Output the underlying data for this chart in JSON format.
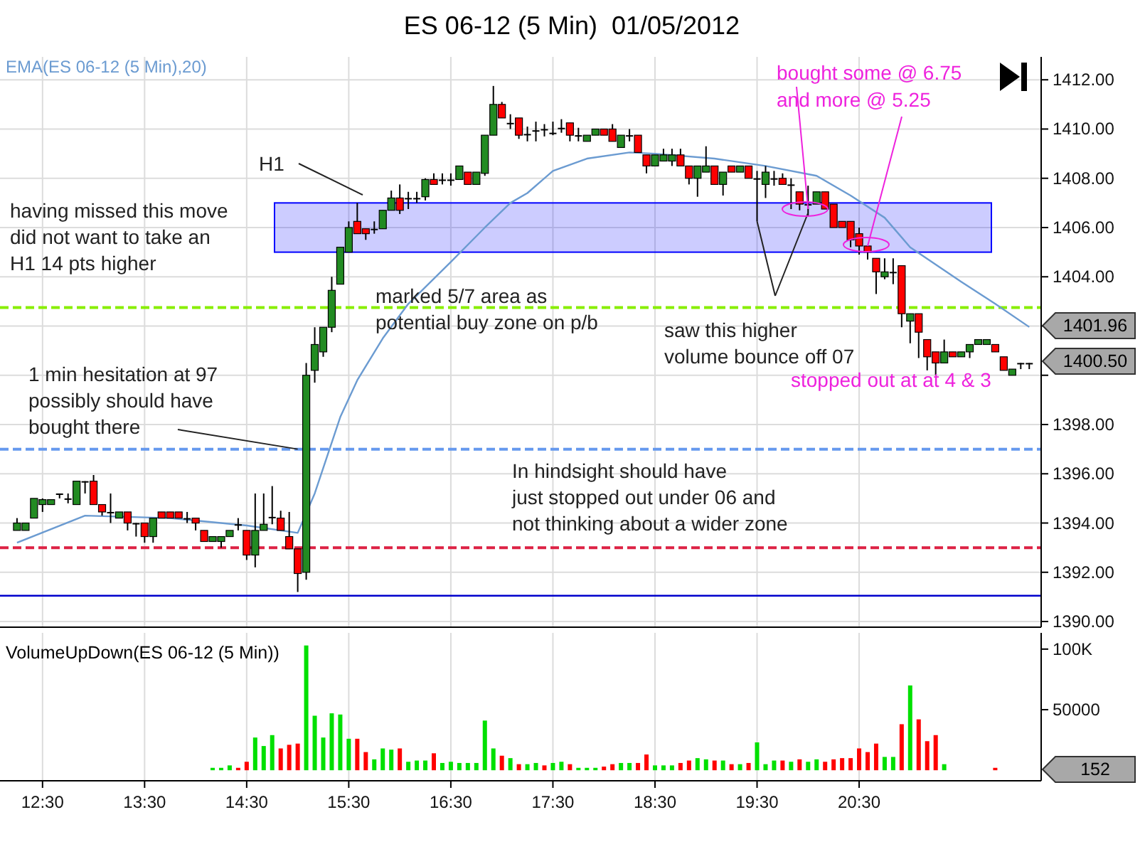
{
  "chart_data": [
    {
      "type": "candlestick",
      "title": "ES 06-12 (5 Min)  01/05/2012",
      "x": [
        "2012-05-01T12:15",
        "2012-05-01T12:20",
        "2012-05-01T12:25",
        "2012-05-01T12:30",
        "2012-05-01T12:35",
        "2012-05-01T12:40",
        "2012-05-01T12:45",
        "2012-05-01T12:50",
        "2012-05-01T12:55",
        "2012-05-01T13:00",
        "2012-05-01T13:05",
        "2012-05-01T13:10",
        "2012-05-01T13:15",
        "2012-05-01T13:20",
        "2012-05-01T13:25",
        "2012-05-01T13:30",
        "2012-05-01T13:35",
        "2012-05-01T13:40",
        "2012-05-01T13:45",
        "2012-05-01T13:50",
        "2012-05-01T13:55",
        "2012-05-01T14:00",
        "2012-05-01T14:05",
        "2012-05-01T14:10",
        "2012-05-01T14:15",
        "2012-05-01T14:20",
        "2012-05-01T14:25",
        "2012-05-01T14:30",
        "2012-05-01T14:35",
        "2012-05-01T14:40",
        "2012-05-01T14:45",
        "2012-05-01T14:50",
        "2012-05-01T14:55",
        "2012-05-01T15:00",
        "2012-05-01T15:05",
        "2012-05-01T15:10",
        "2012-05-01T15:15",
        "2012-05-01T15:20",
        "2012-05-01T15:25",
        "2012-05-01T15:30",
        "2012-05-01T15:35",
        "2012-05-01T15:40",
        "2012-05-01T15:45",
        "2012-05-01T15:50",
        "2012-05-01T15:55",
        "2012-05-01T16:00",
        "2012-05-01T16:05",
        "2012-05-01T16:10",
        "2012-05-01T16:15",
        "2012-05-01T16:20",
        "2012-05-01T16:25",
        "2012-05-01T16:30",
        "2012-05-01T16:35",
        "2012-05-01T16:40",
        "2012-05-01T16:45",
        "2012-05-01T16:50",
        "2012-05-01T16:55",
        "2012-05-01T17:00",
        "2012-05-01T17:05",
        "2012-05-01T17:10",
        "2012-05-01T17:15",
        "2012-05-01T17:20",
        "2012-05-01T17:25",
        "2012-05-01T17:30",
        "2012-05-01T17:35",
        "2012-05-01T17:40",
        "2012-05-01T17:45",
        "2012-05-01T17:50",
        "2012-05-01T17:55",
        "2012-05-01T18:00",
        "2012-05-01T18:05",
        "2012-05-01T18:10",
        "2012-05-01T18:15",
        "2012-05-01T18:20",
        "2012-05-01T18:25",
        "2012-05-01T18:30",
        "2012-05-01T18:35",
        "2012-05-01T18:40",
        "2012-05-01T18:45",
        "2012-05-01T18:50",
        "2012-05-01T18:55",
        "2012-05-01T19:00",
        "2012-05-01T19:05",
        "2012-05-01T19:10",
        "2012-05-01T19:15",
        "2012-05-01T19:20",
        "2012-05-01T19:25",
        "2012-05-01T19:30",
        "2012-05-01T19:35",
        "2012-05-01T19:40",
        "2012-05-01T19:45",
        "2012-05-01T19:50",
        "2012-05-01T19:55",
        "2012-05-01T20:00",
        "2012-05-01T20:05",
        "2012-05-01T20:10",
        "2012-05-01T20:15",
        "2012-05-01T20:20",
        "2012-05-01T20:25",
        "2012-05-01T20:30",
        "2012-05-01T20:35",
        "2012-05-01T20:40",
        "2012-05-01T20:45",
        "2012-05-01T20:50",
        "2012-05-01T20:55",
        "2012-05-01T21:00",
        "2012-05-01T21:05",
        "2012-05-01T21:10",
        "2012-05-01T21:15",
        "2012-05-01T21:20",
        "2012-05-01T21:25",
        "2012-05-01T21:30",
        "2012-05-01T21:35",
        "2012-05-01T21:40",
        "2012-05-01T21:45",
        "2012-05-01T21:50",
        "2012-05-01T21:55",
        "2012-05-01T22:00",
        "2012-05-01T22:05",
        "2012-05-01T22:10"
      ],
      "ohlc": [
        [
          1393.7,
          1394.2,
          1393.7,
          1394.0
        ],
        [
          1393.7,
          1394.0,
          1393.7,
          1394.0
        ],
        [
          1394.2,
          1395.0,
          1394.2,
          1395.0
        ],
        [
          1394.75,
          1395.0,
          1394.45,
          1394.95
        ],
        [
          1394.75,
          1394.95,
          1394.75,
          1394.95
        ],
        [
          1395.2,
          1395.2,
          1395.0,
          1395.2
        ],
        [
          1395.0,
          1395.2,
          1394.8,
          1395.0
        ],
        [
          1394.75,
          1395.7,
          1394.75,
          1395.7
        ],
        [
          1395.7,
          1395.7,
          1395.2,
          1395.7
        ],
        [
          1395.7,
          1395.95,
          1394.75,
          1394.75
        ],
        [
          1394.75,
          1394.75,
          1394.3,
          1394.45
        ],
        [
          1394.45,
          1395.2,
          1394.0,
          1394.45
        ],
        [
          1394.2,
          1394.45,
          1394.2,
          1394.45
        ],
        [
          1394.45,
          1394.45,
          1393.7,
          1394.0
        ],
        [
          1394.0,
          1394.0,
          1393.45,
          1394.0
        ],
        [
          1394.0,
          1394.0,
          1393.2,
          1393.45
        ],
        [
          1393.45,
          1394.2,
          1393.2,
          1394.2
        ],
        [
          1394.45,
          1394.45,
          1394.2,
          1394.2
        ],
        [
          1394.45,
          1394.45,
          1394.2,
          1394.2
        ],
        [
          1394.45,
          1394.45,
          1394.2,
          1394.2
        ],
        [
          1394.2,
          1394.45,
          1394.0,
          1394.2
        ],
        [
          1394.2,
          1394.2,
          1393.7,
          1394.0
        ],
        [
          1393.7,
          1393.7,
          1393.25,
          1393.25
        ],
        [
          1393.25,
          1393.45,
          1393.25,
          1393.45
        ],
        [
          1393.25,
          1393.45,
          1393.0,
          1393.45
        ],
        [
          1393.45,
          1393.7,
          1393.45,
          1393.7
        ],
        [
          1393.95,
          1394.2,
          1393.7,
          1393.95
        ],
        [
          1393.7,
          1393.7,
          1392.5,
          1392.7
        ],
        [
          1392.7,
          1395.2,
          1392.2,
          1393.7
        ],
        [
          1393.7,
          1395.2,
          1393.7,
          1393.95
        ],
        [
          1394.25,
          1395.5,
          1393.95,
          1394.25
        ],
        [
          1394.2,
          1394.5,
          1393.7,
          1393.7
        ],
        [
          1393.45,
          1394.45,
          1392.95,
          1392.95
        ],
        [
          1392.95,
          1392.95,
          1391.2,
          1391.95
        ],
        [
          1392.0,
          1400.5,
          1391.7,
          1400.0
        ],
        [
          1400.2,
          1401.95,
          1399.7,
          1401.25
        ],
        [
          1400.95,
          1401.95,
          1400.75,
          1401.95
        ],
        [
          1401.95,
          1404.0,
          1401.75,
          1403.45
        ],
        [
          1403.7,
          1405.2,
          1403.7,
          1405.2
        ],
        [
          1405.0,
          1406.25,
          1405.0,
          1406.0
        ],
        [
          1406.25,
          1407.0,
          1405.75,
          1405.75
        ],
        [
          1405.95,
          1405.95,
          1405.5,
          1405.75
        ],
        [
          1405.95,
          1406.25,
          1405.75,
          1405.95
        ],
        [
          1405.95,
          1406.7,
          1405.95,
          1406.7
        ],
        [
          1406.7,
          1407.5,
          1406.7,
          1407.2
        ],
        [
          1407.2,
          1407.75,
          1406.55,
          1406.7
        ],
        [
          1407.2,
          1407.45,
          1406.75,
          1407.2
        ],
        [
          1407.2,
          1407.45,
          1407.0,
          1407.2
        ],
        [
          1407.25,
          1408.0,
          1407.1,
          1407.95
        ],
        [
          1407.95,
          1408.2,
          1407.75,
          1407.75
        ],
        [
          1407.95,
          1408.2,
          1407.75,
          1407.95
        ],
        [
          1407.95,
          1408.2,
          1407.7,
          1407.95
        ],
        [
          1407.95,
          1408.5,
          1407.95,
          1408.5
        ],
        [
          1408.25,
          1408.25,
          1407.75,
          1407.75
        ],
        [
          1407.75,
          1408.25,
          1407.75,
          1408.25
        ],
        [
          1408.2,
          1409.75,
          1408.1,
          1409.75
        ],
        [
          1409.75,
          1411.75,
          1409.75,
          1411.0
        ],
        [
          1411.0,
          1411.1,
          1410.45,
          1410.45
        ],
        [
          1410.25,
          1410.6,
          1410.0,
          1410.25
        ],
        [
          1410.45,
          1410.45,
          1409.6,
          1409.75
        ],
        [
          1409.8,
          1410.1,
          1409.5,
          1409.8
        ],
        [
          1409.95,
          1410.3,
          1409.5,
          1409.95
        ],
        [
          1410.0,
          1410.2,
          1409.7,
          1410.0
        ],
        [
          1409.85,
          1410.3,
          1409.75,
          1409.85
        ],
        [
          1410.05,
          1410.4,
          1409.85,
          1410.05
        ],
        [
          1410.25,
          1410.25,
          1409.5,
          1409.75
        ],
        [
          1409.75,
          1410.05,
          1409.5,
          1409.75
        ],
        [
          1409.5,
          1409.75,
          1409.5,
          1409.75
        ],
        [
          1409.75,
          1410.0,
          1409.75,
          1410.0
        ],
        [
          1410.0,
          1410.0,
          1409.75,
          1409.75
        ],
        [
          1410.0,
          1410.2,
          1409.5,
          1409.5
        ],
        [
          1409.25,
          1409.75,
          1409.25,
          1409.75
        ],
        [
          1409.75,
          1410.0,
          1409.5,
          1409.75
        ],
        [
          1409.75,
          1409.75,
          1409.05,
          1409.05
        ],
        [
          1408.95,
          1408.95,
          1408.2,
          1408.5
        ],
        [
          1408.5,
          1408.95,
          1408.5,
          1408.95
        ],
        [
          1408.7,
          1409.2,
          1408.7,
          1408.95
        ],
        [
          1408.7,
          1409.2,
          1408.5,
          1408.95
        ],
        [
          1408.95,
          1409.2,
          1408.5,
          1408.5
        ],
        [
          1408.5,
          1408.5,
          1407.75,
          1408.0
        ],
        [
          1408.0,
          1408.5,
          1407.25,
          1408.5
        ],
        [
          1408.25,
          1409.3,
          1408.25,
          1408.5
        ],
        [
          1408.5,
          1408.5,
          1407.75,
          1407.75
        ],
        [
          1407.75,
          1408.25,
          1407.3,
          1408.25
        ],
        [
          1408.5,
          1408.5,
          1408.25,
          1408.25
        ],
        [
          1408.25,
          1408.5,
          1408.25,
          1408.5
        ],
        [
          1408.5,
          1408.5,
          1408.0,
          1408.0
        ],
        [
          1408.0,
          1408.3,
          1406.25,
          1408.0
        ],
        [
          1407.75,
          1408.5,
          1407.2,
          1408.25
        ],
        [
          1408.0,
          1408.3,
          1407.7,
          1408.0
        ],
        [
          1408.0,
          1408.2,
          1407.75,
          1407.75
        ],
        [
          1407.75,
          1408.0,
          1406.75,
          1407.75
        ],
        [
          1407.45,
          1407.45,
          1406.7,
          1406.95
        ],
        [
          1406.95,
          1407.7,
          1406.45,
          1406.95
        ],
        [
          1406.95,
          1407.45,
          1406.95,
          1407.45
        ],
        [
          1407.45,
          1407.45,
          1406.75,
          1406.75
        ],
        [
          1406.95,
          1406.95,
          1406.0,
          1406.0
        ],
        [
          1406.25,
          1406.25,
          1406.0,
          1406.0
        ],
        [
          1406.25,
          1406.25,
          1405.2,
          1405.5
        ],
        [
          1405.75,
          1406.0,
          1404.9,
          1405.25
        ],
        [
          1405.25,
          1405.25,
          1404.7,
          1405.0
        ],
        [
          1404.75,
          1404.75,
          1403.3,
          1404.2
        ],
        [
          1404.0,
          1404.75,
          1403.9,
          1404.2
        ],
        [
          1404.2,
          1404.75,
          1403.7,
          1404.2
        ],
        [
          1404.45,
          1404.45,
          1401.95,
          1402.5
        ],
        [
          1402.2,
          1402.5,
          1401.3,
          1402.5
        ],
        [
          1402.5,
          1402.5,
          1400.7,
          1401.75
        ],
        [
          1401.45,
          1401.45,
          1400.2,
          1400.75
        ],
        [
          1400.95,
          1400.95,
          1400.0,
          1400.5
        ],
        [
          1400.5,
          1401.45,
          1400.5,
          1400.95
        ],
        [
          1400.95,
          1400.95,
          1400.75,
          1400.75
        ],
        [
          1400.75,
          1400.95,
          1400.75,
          1400.95
        ],
        [
          1400.95,
          1401.25,
          1400.7,
          1401.25
        ],
        [
          1401.25,
          1401.45,
          1401.25,
          1401.45
        ],
        [
          1401.25,
          1401.45,
          1401.25,
          1401.45
        ],
        [
          1401.25,
          1401.25,
          1400.95,
          1400.95
        ],
        [
          1400.75,
          1400.75,
          1400.2,
          1400.2
        ],
        [
          1400.0,
          1400.25,
          1400.0,
          1400.25
        ],
        [
          1400.5,
          1400.5,
          1400.25,
          1400.5
        ],
        [
          1400.5,
          1400.5,
          1400.25,
          1400.5
        ]
      ],
      "series": [
        {
          "name": "EMA(ES 06-12 (5 Min),20)",
          "type": "line",
          "color": "#6b9bd1",
          "x": [
            "2012-05-01T12:15",
            "2012-05-01T12:55",
            "2012-05-01T13:45",
            "2012-05-01T14:30",
            "2012-05-01T15:00",
            "2012-05-01T15:10",
            "2012-05-01T15:25",
            "2012-05-01T15:35",
            "2012-05-01T15:50",
            "2012-05-01T16:05",
            "2012-05-01T16:30",
            "2012-05-01T16:50",
            "2012-05-01T17:05",
            "2012-05-01T17:15",
            "2012-05-01T17:30",
            "2012-05-01T17:50",
            "2012-05-01T18:15",
            "2012-05-01T18:30",
            "2012-05-01T19:05",
            "2012-05-01T19:35",
            "2012-05-01T20:05",
            "2012-05-01T20:25",
            "2012-05-01T20:45",
            "2012-05-01T21:00",
            "2012-05-01T21:30",
            "2012-05-01T21:50",
            "2012-05-01T22:10"
          ],
          "values": [
            1393.2,
            1394.3,
            1394.2,
            1393.9,
            1393.6,
            1395.2,
            1398.3,
            1399.8,
            1401.5,
            1402.9,
            1404.6,
            1406.0,
            1407.0,
            1407.4,
            1408.3,
            1408.8,
            1409.05,
            1409.0,
            1408.8,
            1408.5,
            1408.1,
            1407.3,
            1406.4,
            1405.2,
            1403.8,
            1402.9,
            1401.96
          ]
        }
      ],
      "xlim": [
        "2012-05-01T12:05",
        "2012-05-01T22:17"
      ],
      "xticks": [
        {
          "value": "2012-05-01T12:30",
          "label": null
        },
        {
          "value": "2012-05-01T13:30",
          "label": null
        },
        {
          "value": "2012-05-01T14:30",
          "label": null
        },
        {
          "value": "2012-05-01T15:30",
          "label": null
        },
        {
          "value": "2012-05-01T16:30",
          "label": null
        },
        {
          "value": "2012-05-01T17:30",
          "label": null
        },
        {
          "value": "2012-05-01T18:30",
          "label": null
        },
        {
          "value": "2012-05-01T19:30",
          "label": null
        },
        {
          "value": "2012-05-01T20:30",
          "label": null
        }
      ],
      "ylim": [
        1389.77,
        1412.93
      ],
      "yticks": [
        {
          "value": 1390,
          "label": "1390.00"
        },
        {
          "value": 1392,
          "label": "1392.00"
        },
        {
          "value": 1394,
          "label": "1394.00"
        },
        {
          "value": 1396,
          "label": "1396.00"
        },
        {
          "value": 1398,
          "label": "1398.00"
        },
        {
          "value": 1400,
          "label": null
        },
        {
          "value": 1402,
          "label": null
        },
        {
          "value": 1404,
          "label": "1404.00"
        },
        {
          "value": 1406,
          "label": "1406.00"
        },
        {
          "value": 1408,
          "label": "1408.00"
        },
        {
          "value": 1410,
          "label": "1410.00"
        },
        {
          "value": 1412,
          "label": "1412.00"
        }
      ],
      "tick_labels": "y",
      "grid": true,
      "ref_lines": [
        {
          "axis": "y",
          "value": 1402.75,
          "color": "#88ee00",
          "line_style": "dashed"
        },
        {
          "axis": "y",
          "value": 1397,
          "color": "#6699ee",
          "line_style": "dashed"
        },
        {
          "axis": "y",
          "value": 1393,
          "color": "#dd2244",
          "line_style": "dashed"
        },
        {
          "axis": "y",
          "value": 1391.05,
          "color": "#0000cc",
          "line_style": "solid"
        }
      ],
      "bands": [
        {
          "axis": "y",
          "from": 1405,
          "to": 1407,
          "color": "#0000ff"
        }
      ],
      "annotations": [
        "H1",
        "having missed this move\ndid not want to take an\nH1 14 pts higher",
        "marked 5/7 area as\npotential buy zone on p/b",
        {
          "text": "1 min hesitation at 97\npossibly should have\nbought there",
          "x": "2012-05-01T15:00",
          "y": 1397
        },
        {
          "text": "saw this higher\nvolume bounce off 07",
          "x": "2012-05-01T19:30",
          "y": 1406.25
        },
        {
          "text": "bought some @ 6.75",
          "x": "2012-05-01T20:00",
          "y": 1406.75
        },
        {
          "text": "and more @ 5.25",
          "x": "2012-05-01T20:35",
          "y": 1405.25
        },
        "stopped out at at 4 & 3",
        "In hindsight should have\njust stopped out under 06 and\nnot thinking about a wider zone",
        "1401.96",
        "1400.50"
      ]
    },
    {
      "type": "bar",
      "title": "VolumeUpDown(ES 06-12 (5 Min))",
      "x": [
        "2012-05-01T14:10",
        "2012-05-01T14:15",
        "2012-05-01T14:20",
        "2012-05-01T14:25",
        "2012-05-01T14:30",
        "2012-05-01T14:35",
        "2012-05-01T14:40",
        "2012-05-01T14:45",
        "2012-05-01T14:50",
        "2012-05-01T14:55",
        "2012-05-01T15:00",
        "2012-05-01T15:05",
        "2012-05-01T15:10",
        "2012-05-01T15:15",
        "2012-05-01T15:20",
        "2012-05-01T15:25",
        "2012-05-01T15:30",
        "2012-05-01T15:35",
        "2012-05-01T15:40",
        "2012-05-01T15:45",
        "2012-05-01T15:50",
        "2012-05-01T15:55",
        "2012-05-01T16:00",
        "2012-05-01T16:05",
        "2012-05-01T16:10",
        "2012-05-01T16:15",
        "2012-05-01T16:20",
        "2012-05-01T16:25",
        "2012-05-01T16:30",
        "2012-05-01T16:35",
        "2012-05-01T16:40",
        "2012-05-01T16:45",
        "2012-05-01T16:50",
        "2012-05-01T16:55",
        "2012-05-01T17:00",
        "2012-05-01T17:05",
        "2012-05-01T17:10",
        "2012-05-01T17:15",
        "2012-05-01T17:20",
        "2012-05-01T17:25",
        "2012-05-01T17:30",
        "2012-05-01T17:35",
        "2012-05-01T17:40",
        "2012-05-01T17:45",
        "2012-05-01T17:50",
        "2012-05-01T17:55",
        "2012-05-01T18:00",
        "2012-05-01T18:05",
        "2012-05-01T18:10",
        "2012-05-01T18:15",
        "2012-05-01T18:20",
        "2012-05-01T18:25",
        "2012-05-01T18:30",
        "2012-05-01T18:35",
        "2012-05-01T18:40",
        "2012-05-01T18:45",
        "2012-05-01T18:50",
        "2012-05-01T18:55",
        "2012-05-01T19:00",
        "2012-05-01T19:05",
        "2012-05-01T19:10",
        "2012-05-01T19:15",
        "2012-05-01T19:20",
        "2012-05-01T19:25",
        "2012-05-01T19:30",
        "2012-05-01T19:35",
        "2012-05-01T19:40",
        "2012-05-01T19:45",
        "2012-05-01T19:50",
        "2012-05-01T19:55",
        "2012-05-01T20:00",
        "2012-05-01T20:05",
        "2012-05-01T20:10",
        "2012-05-01T20:15",
        "2012-05-01T20:20",
        "2012-05-01T20:25",
        "2012-05-01T20:30",
        "2012-05-01T20:35",
        "2012-05-01T20:40",
        "2012-05-01T20:45",
        "2012-05-01T20:50",
        "2012-05-01T20:55",
        "2012-05-01T21:00",
        "2012-05-01T21:05",
        "2012-05-01T21:10",
        "2012-05-01T21:15",
        "2012-05-01T21:20",
        "2012-05-01T21:50"
      ],
      "values": [
        2000,
        2000,
        4000,
        2000,
        7000,
        27000,
        20000,
        29000,
        18000,
        21000,
        22000,
        103000,
        45000,
        27000,
        47000,
        46000,
        26000,
        26000,
        15000,
        9000,
        18000,
        17000,
        18000,
        7000,
        8000,
        8000,
        14000,
        6000,
        7000,
        6000,
        6000,
        6000,
        41000,
        18000,
        12000,
        10000,
        5000,
        5000,
        6000,
        4000,
        6000,
        7000,
        5000,
        2000,
        2000,
        2000,
        3000,
        5000,
        6000,
        6000,
        6000,
        13000,
        4000,
        4000,
        4000,
        6000,
        8000,
        10000,
        9000,
        8000,
        8000,
        5000,
        5000,
        6000,
        23000,
        5000,
        8000,
        8000,
        7000,
        9000,
        7000,
        9000,
        7000,
        9000,
        10000,
        10000,
        18000,
        15000,
        22000,
        11000,
        11000,
        38000,
        70000,
        42000,
        24000,
        29000,
        5000,
        2000
      ],
      "colors": [
        "#00e000",
        "#00e000",
        "#00e000",
        "#ff0000",
        "#ff0000",
        "#00e000",
        "#00e000",
        "#00e000",
        "#ff0000",
        "#ff0000",
        "#ff0000",
        "#00e000",
        "#00e000",
        "#00e000",
        "#00e000",
        "#00e000",
        "#00e000",
        "#ff0000",
        "#ff0000",
        "#00e000",
        "#00e000",
        "#00e000",
        "#ff0000",
        "#00e000",
        "#00e000",
        "#00e000",
        "#ff0000",
        "#00e000",
        "#00e000",
        "#00e000",
        "#00e000",
        "#00e000",
        "#00e000",
        "#00e000",
        "#ff0000",
        "#00e000",
        "#ff0000",
        "#00e000",
        "#00e000",
        "#ff0000",
        "#00e000",
        "#00e000",
        "#ff0000",
        "#00e000",
        "#00e000",
        "#00e000",
        "#ff0000",
        "#ff0000",
        "#00e000",
        "#00e000",
        "#ff0000",
        "#ff0000",
        "#00e000",
        "#00e000",
        "#00e000",
        "#ff0000",
        "#ff0000",
        "#00e000",
        "#00e000",
        "#ff0000",
        "#00e000",
        "#ff0000",
        "#00e000",
        "#ff0000",
        "#00e000",
        "#00e000",
        "#00e000",
        "#ff0000",
        "#00e000",
        "#ff0000",
        "#00e000",
        "#00e000",
        "#ff0000",
        "#ff0000",
        "#ff0000",
        "#ff0000",
        "#ff0000",
        "#ff0000",
        "#ff0000",
        "#00e000",
        "#00e000",
        "#ff0000",
        "#00e000",
        "#ff0000",
        "#ff0000",
        "#ff0000",
        "#00e000",
        "#ff0000"
      ],
      "xlim": [
        "2012-05-01T12:05",
        "2012-05-01T22:17"
      ],
      "xticks": [
        {
          "value": "2012-05-01T12:30",
          "label": "12:30"
        },
        {
          "value": "2012-05-01T13:30",
          "label": "13:30"
        },
        {
          "value": "2012-05-01T14:30",
          "label": "14:30"
        },
        {
          "value": "2012-05-01T15:30",
          "label": "15:30"
        },
        {
          "value": "2012-05-01T16:30",
          "label": "16:30"
        },
        {
          "value": "2012-05-01T17:30",
          "label": "17:30"
        },
        {
          "value": "2012-05-01T18:30",
          "label": "18:30"
        },
        {
          "value": "2012-05-01T19:30",
          "label": "19:30"
        },
        {
          "value": "2012-05-01T20:30",
          "label": "20:30"
        }
      ],
      "ylim": [
        -8700,
        113400
      ],
      "yticks": [
        50000,
        {
          "value": 100000,
          "label": "100K"
        }
      ],
      "grid": "x",
      "annotations": [
        "152"
      ]
    }
  ]
}
